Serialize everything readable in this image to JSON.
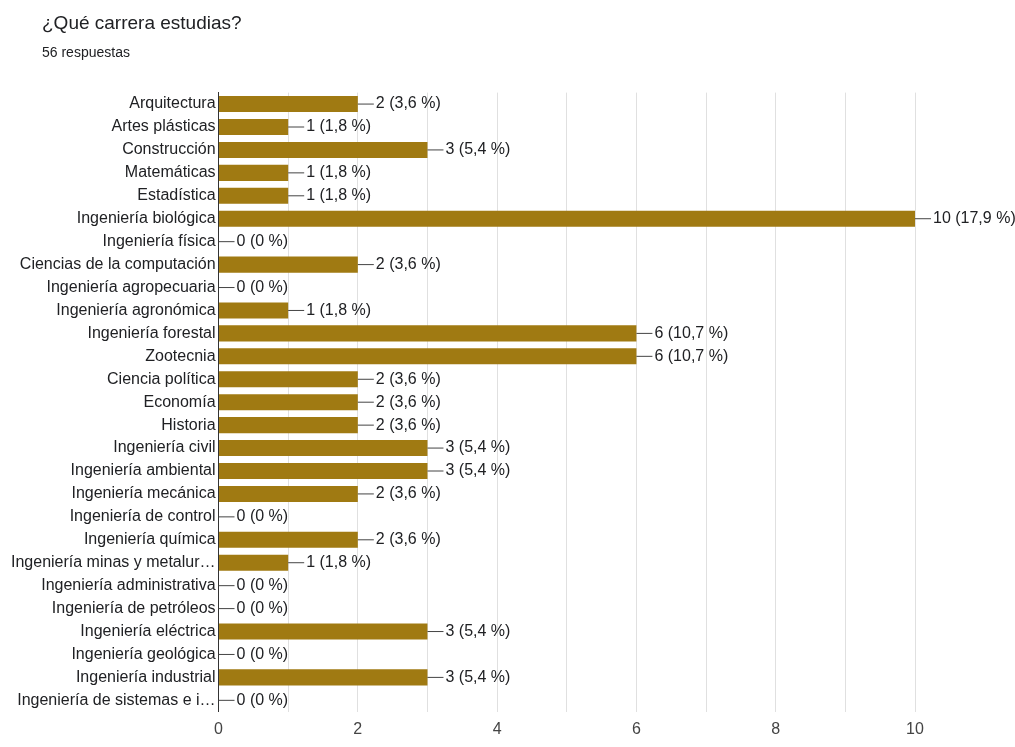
{
  "chart_data": {
    "type": "bar",
    "orientation": "horizontal",
    "title": "¿Qué carrera estudias?",
    "subtitle": "56 respuestas",
    "categories": [
      "Arquitectura",
      "Artes plásticas",
      "Construcción",
      "Matemáticas",
      "Estadística",
      "Ingeniería biológica",
      "Ingeniería física",
      "Ciencias de la computación",
      "Ingeniería agropecuaria",
      "Ingeniería agronómica",
      "Ingeniería forestal",
      "Zootecnia",
      "Ciencia política",
      "Economía",
      "Historia",
      "Ingeniería civil",
      "Ingeniería ambiental",
      "Ingeniería mecánica",
      "Ingeniería de control",
      "Ingeniería química",
      "Ingeniería minas y metalur…",
      "Ingeniería administrativa",
      "Ingeniería de petróleos",
      "Ingeniería eléctrica",
      "Ingeniería geológica",
      "Ingeniería industrial",
      "Ingeniería de sistemas e i…"
    ],
    "values": [
      2,
      1,
      3,
      1,
      1,
      10,
      0,
      2,
      0,
      1,
      6,
      6,
      2,
      2,
      2,
      3,
      3,
      2,
      0,
      2,
      1,
      0,
      0,
      3,
      0,
      3,
      0
    ],
    "value_labels": [
      "2 (3,6 %)",
      "1 (1,8 %)",
      "3 (5,4 %)",
      "1 (1,8 %)",
      "1 (1,8 %)",
      "10 (17,9 %)",
      "0 (0 %)",
      "2 (3,6 %)",
      "0 (0 %)",
      "1 (1,8 %)",
      "6 (10,7 %)",
      "6 (10,7 %)",
      "2 (3,6 %)",
      "2 (3,6 %)",
      "2 (3,6 %)",
      "3 (5,4 %)",
      "3 (5,4 %)",
      "2 (3,6 %)",
      "0 (0 %)",
      "2 (3,6 %)",
      "1 (1,8 %)",
      "0 (0 %)",
      "0 (0 %)",
      "3 (5,4 %)",
      "0 (0 %)",
      "3 (5,4 %)",
      "0 (0 %)"
    ],
    "color": "#a07a12",
    "xlim": [
      0,
      10
    ],
    "xticks": [
      0,
      {
        "value": 1,
        "label": null
      },
      2,
      {
        "value": 3,
        "label": null
      },
      4,
      {
        "value": 5,
        "label": null
      },
      6,
      {
        "value": 7,
        "label": null
      },
      8,
      {
        "value": 9,
        "label": null
      },
      10
    ],
    "grid": "x",
    "legend": false
  }
}
